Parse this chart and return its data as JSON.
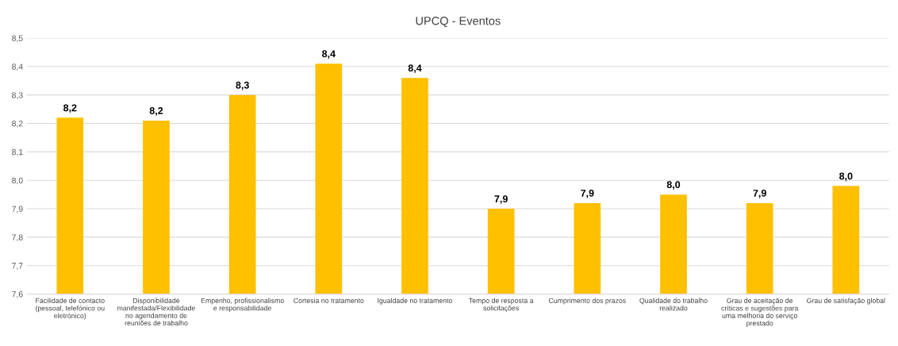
{
  "chart_data": {
    "type": "bar",
    "title": "UPCQ - Eventos",
    "categories": [
      "Facilidade de contacto\n(pessoal, telefónico ou\neletrónico)",
      "Disponibilidade\nmanifestada/Flexibilidade\nno agendamento de\nreuniões de trabalho",
      "Empenho, profissionalismo\ne responsabilidade",
      "Cortesia no tratamento",
      "Igualdade no tratamento",
      "Tempo de resposta a\nsolicitações",
      "Cumprimento dos prazos",
      "Qualidade do trabalho\nrealizado",
      "Grau de aceitação de\ncríticas e sugestões para\numa melhoria do serviço\nprestado",
      "Grau de satisfação global"
    ],
    "values": [
      8.22,
      8.21,
      8.3,
      8.41,
      8.36,
      7.9,
      7.92,
      7.95,
      7.92,
      7.98
    ],
    "value_labels": [
      "8,2",
      "8,2",
      "8,3",
      "8,4",
      "8,4",
      "7,9",
      "7,9",
      "8,0",
      "7,9",
      "8,0"
    ],
    "color": "#ffc000",
    "ylim": [
      7.6,
      8.5
    ],
    "yticks": [
      {
        "value": 7.6,
        "label": "7,6"
      },
      {
        "value": 7.7,
        "label": "7,7"
      },
      {
        "value": 7.8,
        "label": "7,8"
      },
      {
        "value": 7.9,
        "label": "7,9"
      },
      {
        "value": 8.0,
        "label": "8,0"
      },
      {
        "value": 8.1,
        "label": "8,1"
      },
      {
        "value": 8.2,
        "label": "8,2"
      },
      {
        "value": 8.3,
        "label": "8,3"
      },
      {
        "value": 8.4,
        "label": "8,4"
      },
      {
        "value": 8.5,
        "label": "8,5"
      }
    ],
    "grid": "y"
  }
}
